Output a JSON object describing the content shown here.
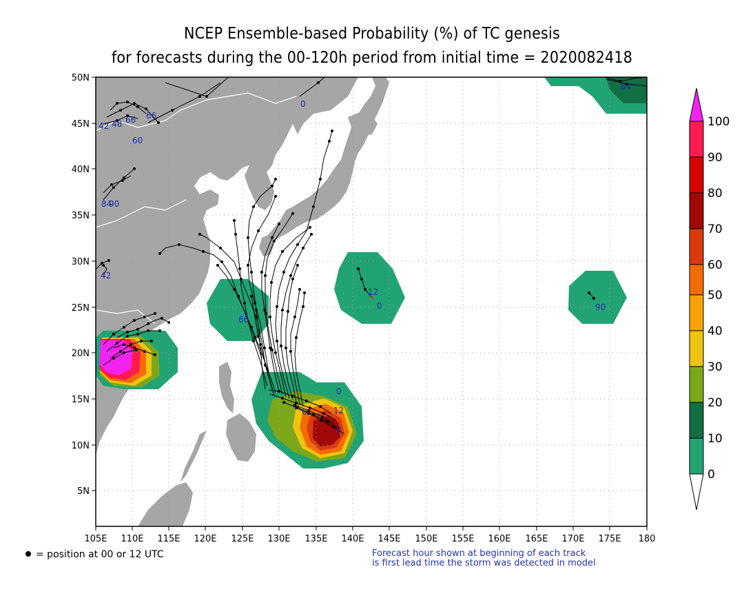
{
  "title": {
    "line1": "NCEP Ensemble-based Probability (%) of TC genesis",
    "line2": "for forecasts during the 00-120h period from initial time = 2020082418"
  },
  "axes": {
    "lon_ticks": [
      "105E",
      "110E",
      "115E",
      "120E",
      "125E",
      "130E",
      "135E",
      "140E",
      "145E",
      "150E",
      "155E",
      "160E",
      "165E",
      "170E",
      "175E",
      "180"
    ],
    "lat_ticks": [
      "5N",
      "10N",
      "15N",
      "20N",
      "25N",
      "30N",
      "35N",
      "40N",
      "45N",
      "50N"
    ]
  },
  "legend": {
    "levels": [
      "0",
      "10",
      "20",
      "30",
      "40",
      "50",
      "60",
      "70",
      "80",
      "90",
      "100"
    ],
    "colors": [
      "#22a374",
      "#116e45",
      "#7da71b",
      "#efc40f",
      "#f7a306",
      "#f26c02",
      "#d93b0e",
      "#a30808",
      "#d90000",
      "#ff1a51",
      "#f223f2"
    ]
  },
  "forecast_labels": [
    {
      "text": "0"
    },
    {
      "text": "12"
    },
    {
      "text": "0"
    },
    {
      "text": "90"
    },
    {
      "text": "0"
    },
    {
      "text": "12"
    },
    {
      "text": "6"
    },
    {
      "text": "0"
    },
    {
      "text": "84"
    },
    {
      "text": "66"
    },
    {
      "text": "60"
    },
    {
      "text": "42"
    },
    {
      "text": "48"
    },
    {
      "text": "66"
    },
    {
      "text": "84"
    },
    {
      "text": "90"
    },
    {
      "text": "66"
    },
    {
      "text": "42"
    }
  ],
  "footer": {
    "left": "= position at 00 or 12 UTC",
    "right_line1": "Forecast hour shown at beginning of each track",
    "right_line2": "is first lead time the storm was detected in model"
  }
}
